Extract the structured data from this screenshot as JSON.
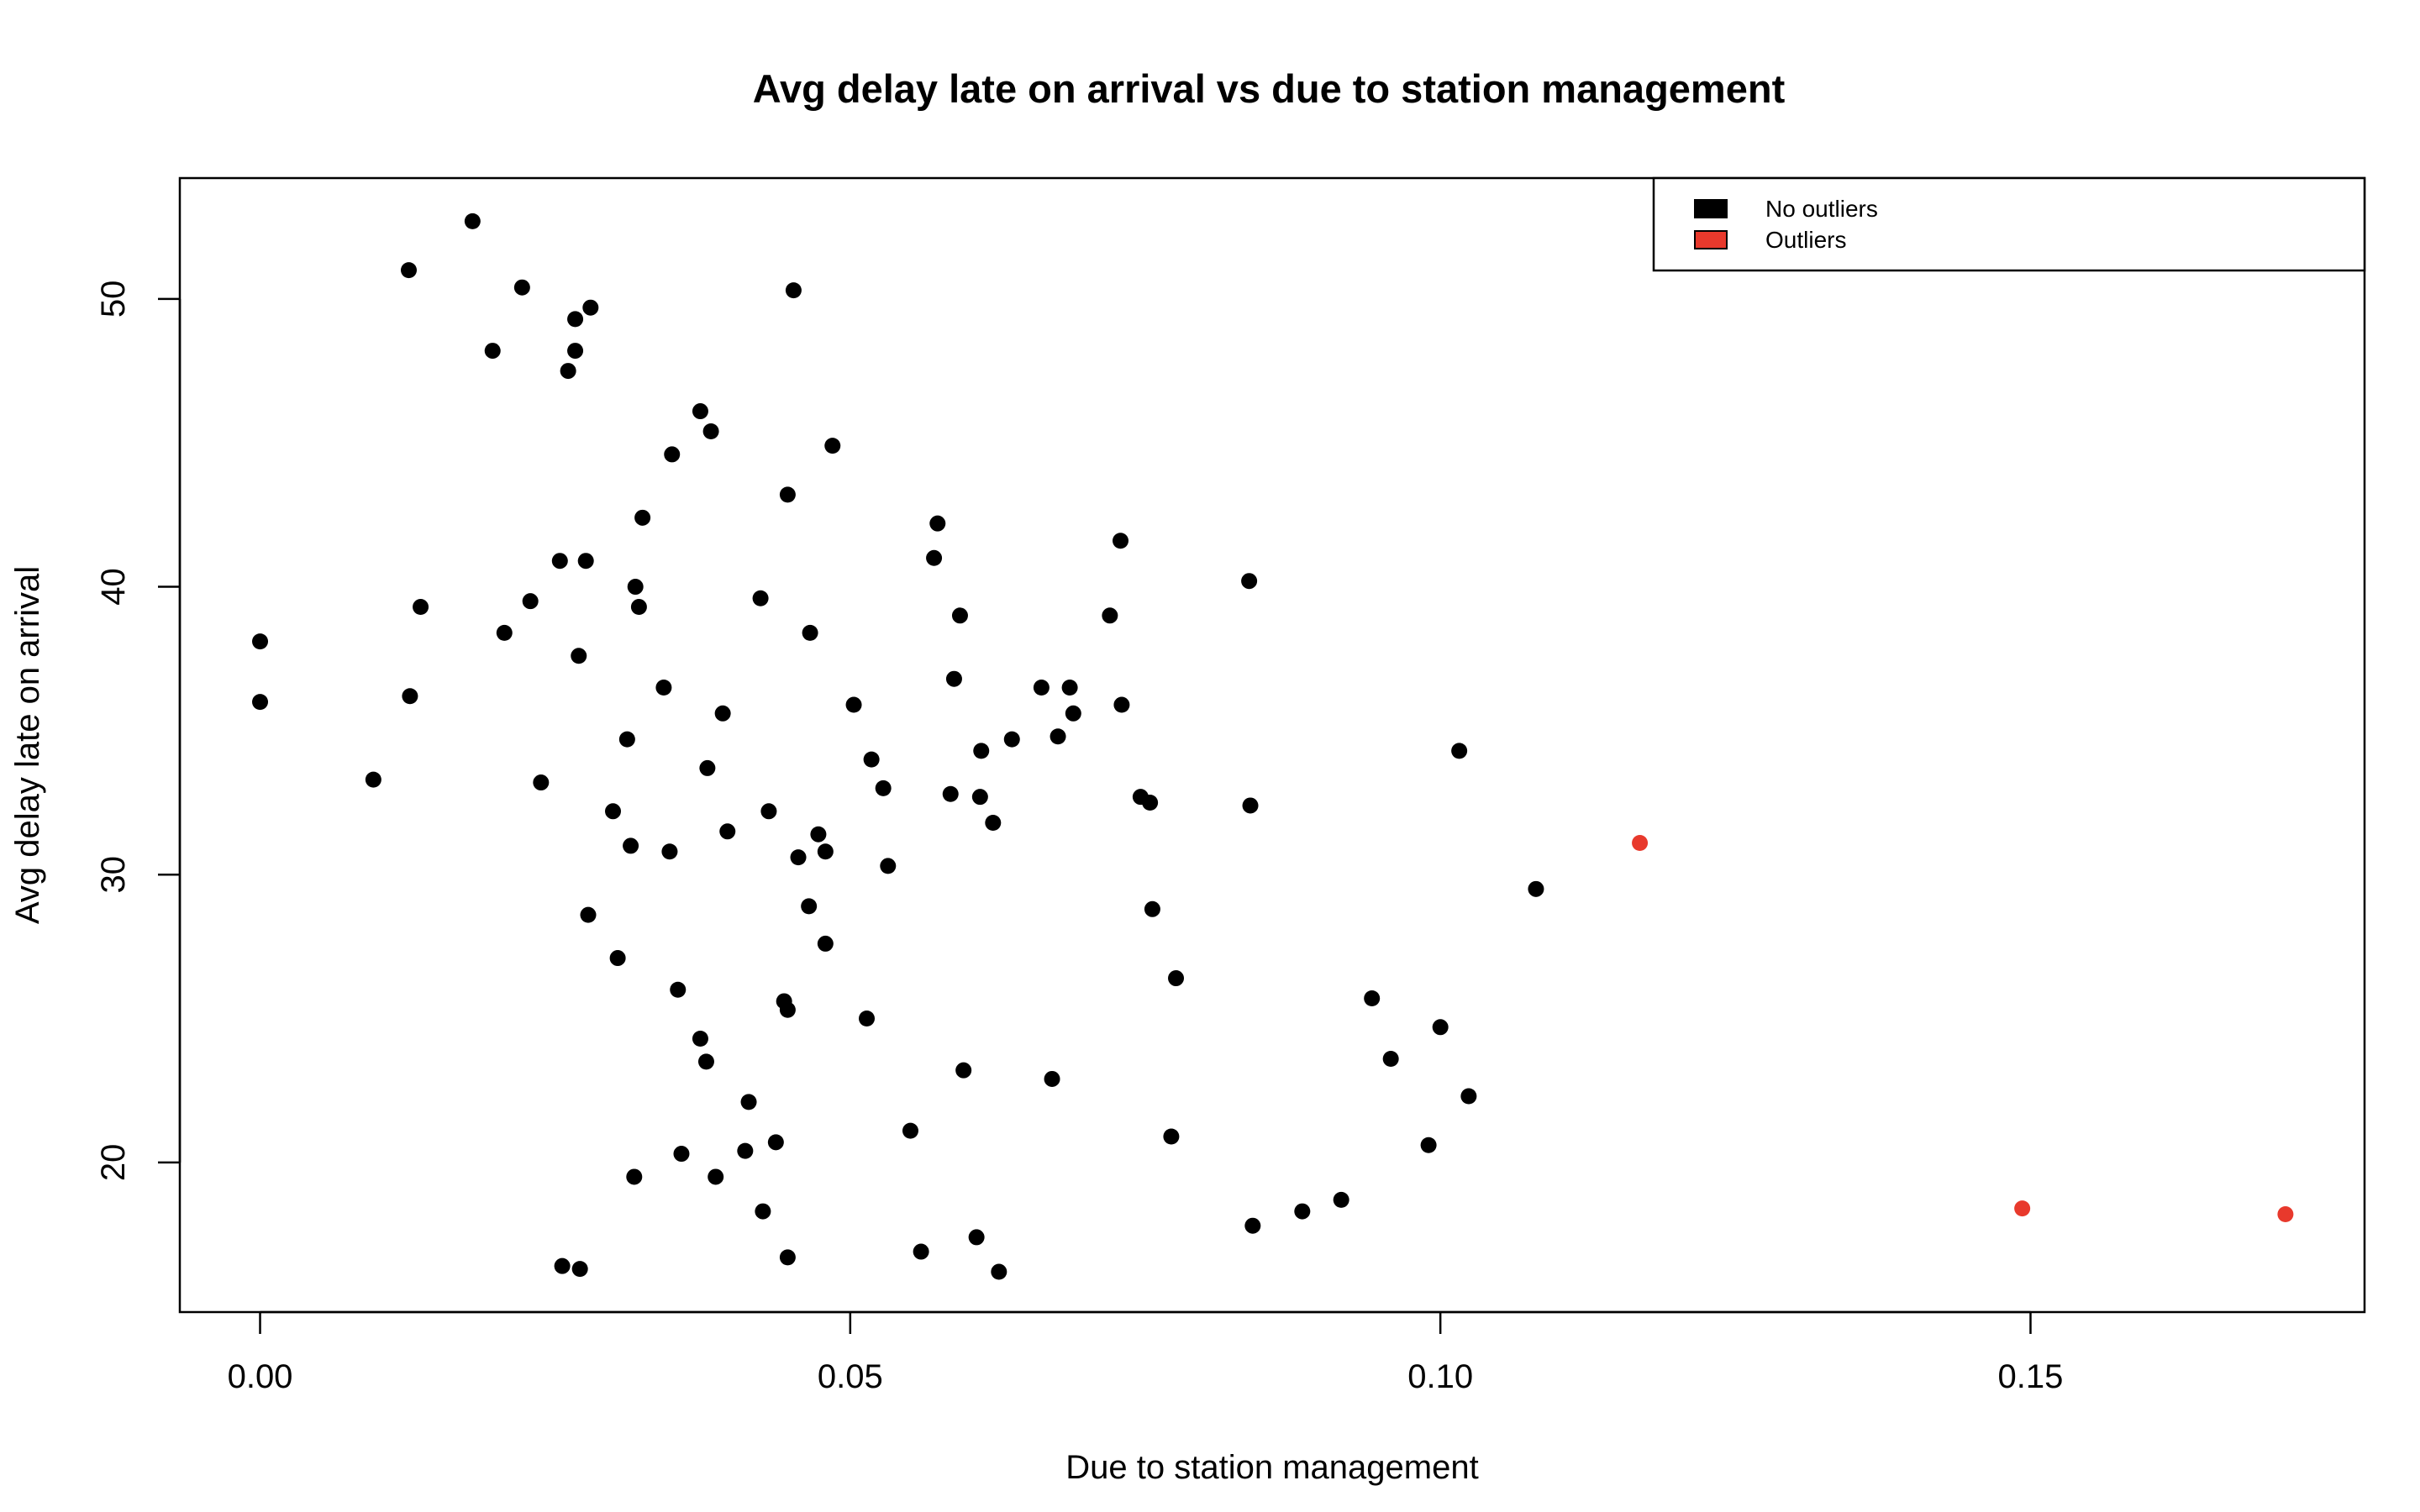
{
  "chart_data": {
    "type": "scatter",
    "title": "Avg delay late on arrival vs due to station management",
    "xlabel": "Due to station management",
    "ylabel": "Avg delay late on arrival",
    "xlim": [
      -0.0068,
      0.1783
    ],
    "ylim": [
      14.8,
      54.2
    ],
    "xticks": [
      0.0,
      0.05,
      0.1,
      0.15
    ],
    "xtick_labels": [
      "0.00",
      "0.05",
      "0.10",
      "0.15"
    ],
    "yticks": [
      20,
      30,
      40,
      50
    ],
    "ytick_labels": [
      "20",
      "30",
      "40",
      "50"
    ],
    "grid": false,
    "legend_position": "top-right",
    "series": [
      {
        "name": "No outliers",
        "color": "#000000",
        "points": [
          [
            0.0,
            38.1
          ],
          [
            0.0,
            36.0
          ],
          [
            0.0096,
            33.3
          ],
          [
            0.0126,
            51.0
          ],
          [
            0.0127,
            36.2
          ],
          [
            0.0136,
            39.3
          ],
          [
            0.018,
            52.7
          ],
          [
            0.0197,
            48.2
          ],
          [
            0.0207,
            38.4
          ],
          [
            0.0222,
            50.4
          ],
          [
            0.0229,
            39.5
          ],
          [
            0.0238,
            33.2
          ],
          [
            0.0254,
            40.9
          ],
          [
            0.0256,
            16.4
          ],
          [
            0.0261,
            47.5
          ],
          [
            0.0267,
            48.2
          ],
          [
            0.0267,
            49.3
          ],
          [
            0.027,
            37.6
          ],
          [
            0.0271,
            16.3
          ],
          [
            0.0276,
            40.9
          ],
          [
            0.0278,
            28.6
          ],
          [
            0.028,
            49.7
          ],
          [
            0.0299,
            32.2
          ],
          [
            0.0303,
            27.1
          ],
          [
            0.0311,
            34.7
          ],
          [
            0.0314,
            31.0
          ],
          [
            0.0317,
            19.5
          ],
          [
            0.0318,
            40.0
          ],
          [
            0.0321,
            39.3
          ],
          [
            0.0324,
            42.4
          ],
          [
            0.0342,
            36.5
          ],
          [
            0.0347,
            30.8
          ],
          [
            0.0349,
            44.6
          ],
          [
            0.0354,
            26.0
          ],
          [
            0.0357,
            20.3
          ],
          [
            0.0373,
            46.1
          ],
          [
            0.0373,
            24.3
          ],
          [
            0.0378,
            23.5
          ],
          [
            0.0379,
            33.7
          ],
          [
            0.0382,
            45.4
          ],
          [
            0.0386,
            19.5
          ],
          [
            0.0392,
            35.6
          ],
          [
            0.0396,
            31.5
          ],
          [
            0.0411,
            20.4
          ],
          [
            0.0414,
            22.1
          ],
          [
            0.0424,
            39.6
          ],
          [
            0.0426,
            18.3
          ],
          [
            0.0431,
            32.2
          ],
          [
            0.0437,
            20.7
          ],
          [
            0.0444,
            25.6
          ],
          [
            0.0447,
            43.2
          ],
          [
            0.0447,
            25.3
          ],
          [
            0.0447,
            16.7
          ],
          [
            0.0452,
            50.3
          ],
          [
            0.0456,
            30.6
          ],
          [
            0.0465,
            28.9
          ],
          [
            0.0466,
            38.4
          ],
          [
            0.0473,
            31.4
          ],
          [
            0.0479,
            30.8
          ],
          [
            0.0479,
            27.6
          ],
          [
            0.0485,
            44.9
          ],
          [
            0.0503,
            35.9
          ],
          [
            0.0514,
            25.0
          ],
          [
            0.0518,
            34.0
          ],
          [
            0.0528,
            33.0
          ],
          [
            0.0532,
            30.3
          ],
          [
            0.0551,
            21.1
          ],
          [
            0.056,
            16.9
          ],
          [
            0.0571,
            41.0
          ],
          [
            0.0574,
            42.2
          ],
          [
            0.0585,
            32.8
          ],
          [
            0.0588,
            36.8
          ],
          [
            0.0593,
            39.0
          ],
          [
            0.0596,
            23.2
          ],
          [
            0.0607,
            17.4
          ],
          [
            0.061,
            32.7
          ],
          [
            0.0611,
            34.3
          ],
          [
            0.0621,
            31.8
          ],
          [
            0.0626,
            16.2
          ],
          [
            0.0637,
            34.7
          ],
          [
            0.0662,
            36.5
          ],
          [
            0.0671,
            22.9
          ],
          [
            0.0676,
            34.8
          ],
          [
            0.0686,
            36.5
          ],
          [
            0.0689,
            35.6
          ],
          [
            0.072,
            39.0
          ],
          [
            0.0729,
            41.6
          ],
          [
            0.073,
            35.9
          ],
          [
            0.0746,
            32.7
          ],
          [
            0.0754,
            32.5
          ],
          [
            0.0756,
            28.8
          ],
          [
            0.0772,
            20.9
          ],
          [
            0.0776,
            26.4
          ],
          [
            0.0838,
            40.2
          ],
          [
            0.0839,
            32.4
          ],
          [
            0.0841,
            17.8
          ],
          [
            0.0883,
            18.3
          ],
          [
            0.0916,
            18.7
          ],
          [
            0.0942,
            25.7
          ],
          [
            0.0958,
            23.6
          ],
          [
            0.099,
            20.6
          ],
          [
            0.1,
            24.7
          ],
          [
            0.1016,
            34.3
          ],
          [
            0.1024,
            22.3
          ],
          [
            0.1081,
            29.5
          ]
        ]
      },
      {
        "name": "Outliers",
        "color": "#e8392c",
        "points": [
          [
            0.1169,
            31.1
          ],
          [
            0.1493,
            18.4
          ],
          [
            0.1716,
            18.2
          ]
        ]
      }
    ]
  }
}
